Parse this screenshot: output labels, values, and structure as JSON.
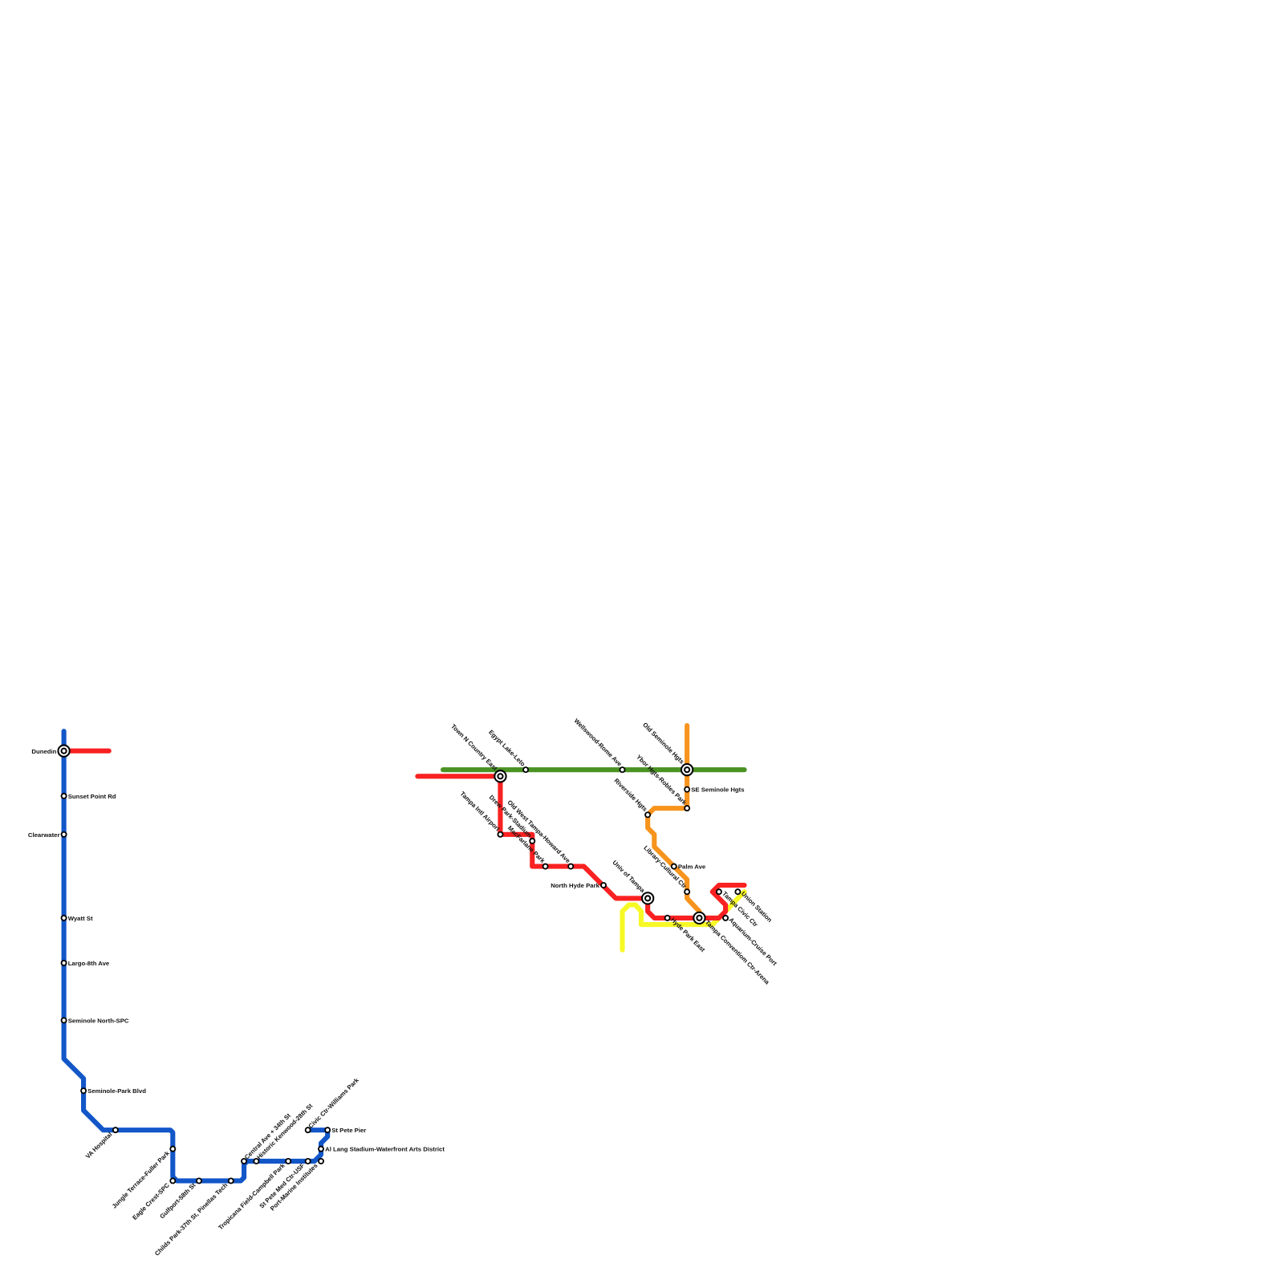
{
  "colors": {
    "blue": "#1256c8",
    "red": "#f92121",
    "green": "#4a9223",
    "orange": "#f7941d",
    "yellow": "#f6f926"
  },
  "lines": [
    {
      "id": "blue",
      "color": "#1256c8"
    },
    {
      "id": "red-west",
      "color": "#f92121"
    },
    {
      "id": "green",
      "color": "#4a9223"
    },
    {
      "id": "red",
      "color": "#f92121"
    },
    {
      "id": "orange",
      "color": "#f7941d"
    },
    {
      "id": "yellow",
      "color": "#f6f926"
    }
  ],
  "stations": [
    {
      "name": "Dunedin",
      "interchange": true
    },
    {
      "name": "Sunset Point Rd"
    },
    {
      "name": "Clearwater"
    },
    {
      "name": "Wyatt St"
    },
    {
      "name": "Largo-8th Ave"
    },
    {
      "name": "Seminole North-SPC"
    },
    {
      "name": "Seminole-Park Blvd"
    },
    {
      "name": "VA Hospital"
    },
    {
      "name": "Jungle Terrace-Fuller Park"
    },
    {
      "name": "Eagle Crest-SPC"
    },
    {
      "name": "Gulfport-58th St"
    },
    {
      "name": "Childs Park-37th St, Pinellas Tech"
    },
    {
      "name": "Central Ave + 34th St"
    },
    {
      "name": "Historic Kenwood-28th St"
    },
    {
      "name": "Tropicana Field-Campbell Park"
    },
    {
      "name": "St Pete Med Ctr-USF"
    },
    {
      "name": "Port-Marine Institutes"
    },
    {
      "name": "Al Lang Stadium-Waterfront Arts District"
    },
    {
      "name": "Civic Ctr-Williams Park"
    },
    {
      "name": "St Pete Pier"
    },
    {
      "name": "Town N Country East",
      "interchange": true
    },
    {
      "name": "Egypt Lake-Leto"
    },
    {
      "name": "Wellswood-Rome Ave"
    },
    {
      "name": "Old Seminole Hgts",
      "interchange": true
    },
    {
      "name": "SE Seminole Hgts"
    },
    {
      "name": "Ybor Hgts-Robles Park"
    },
    {
      "name": "Riverside Hgts"
    },
    {
      "name": "Tampa Intl Airport"
    },
    {
      "name": "Drew Park-Stadium"
    },
    {
      "name": "MacFarlane Park"
    },
    {
      "name": "Old West Tampa-Howard Ave"
    },
    {
      "name": "North Hyde Park"
    },
    {
      "name": "Univ of Tampa",
      "interchange": true
    },
    {
      "name": "Palm Ave"
    },
    {
      "name": "Library-Cultural Ctr"
    },
    {
      "name": "Hyde Park East"
    },
    {
      "name": "Tampa Conventiom Ctr-Arena",
      "interchange": true
    },
    {
      "name": "Tampa Civic Ctr"
    },
    {
      "name": "Aquarium-Cruise Port"
    },
    {
      "name": "Union Station"
    }
  ]
}
